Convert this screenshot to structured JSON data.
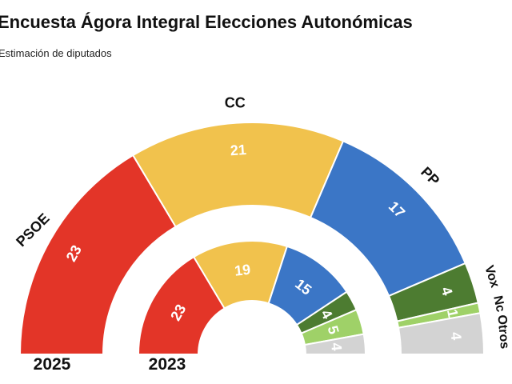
{
  "chart_data": {
    "type": "pie",
    "variant": "nested-half-donut-hemicycle",
    "title": "Encuesta Ágora Integral Elecciones Autonómicas",
    "subtitle": "Estimación de diputados",
    "unit": "diputados",
    "total_seats": 70,
    "seat_order": "left-to-right",
    "categories": [
      "PSOE",
      "CC",
      "PP",
      "Vox",
      "Nc",
      "Otros"
    ],
    "colors": [
      "#e33528",
      "#f1c24d",
      "#3b76c6",
      "#4d7c31",
      "#9fd168",
      "#d3d3d3"
    ],
    "value_label_color": "#ffffff",
    "category_label_color": "#111111",
    "rings": [
      {
        "label": "2025",
        "position": "outer",
        "values": [
          23,
          21,
          17,
          4,
          1,
          4
        ]
      },
      {
        "label": "2023",
        "position": "inner",
        "values": [
          23,
          19,
          15,
          4,
          5,
          4
        ]
      }
    ]
  }
}
